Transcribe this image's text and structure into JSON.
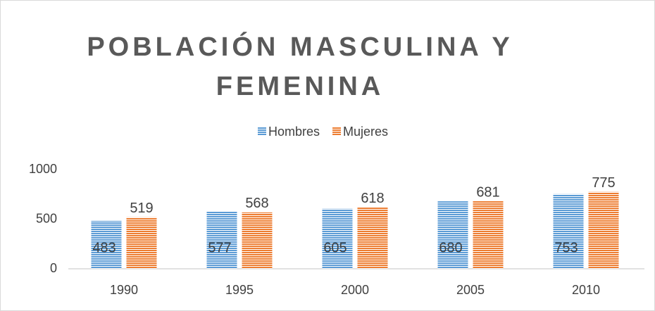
{
  "chart_data": {
    "type": "bar",
    "title": "POBLACIÓN MASCULINA Y FEMENINA",
    "categories": [
      "1990",
      "1995",
      "2000",
      "2005",
      "2010"
    ],
    "series": [
      {
        "name": "Hombres",
        "color": "#5b9bd5",
        "values": [
          483,
          577,
          605,
          680,
          753
        ]
      },
      {
        "name": "Mujeres",
        "color": "#ed7d31",
        "values": [
          519,
          568,
          618,
          681,
          775
        ]
      }
    ],
    "ylim": [
      0,
      1000
    ],
    "yticks": [
      0,
      500,
      1000
    ],
    "grid": false,
    "legend": "top"
  }
}
